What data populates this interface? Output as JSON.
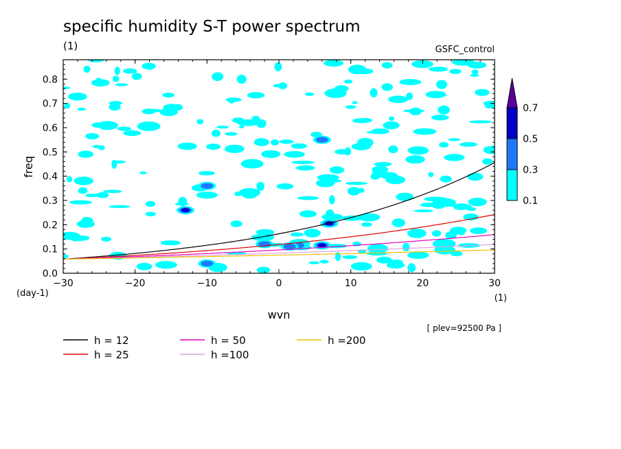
{
  "chart_data": {
    "type": "contour",
    "title": "specific humidity S-T power spectrum",
    "subtitle_left": "(1)",
    "subtitle_right": "GSFC_control",
    "xlabel": "wvn",
    "xunit": "(1)",
    "ylabel": "freq",
    "yunit": "(day-1)",
    "xlim": [
      -30,
      30
    ],
    "ylim": [
      0,
      0.88
    ],
    "x_ticks": [
      -30,
      -20,
      -10,
      0,
      10,
      20,
      30
    ],
    "x_tick_labels": [
      "−30",
      "−20",
      "−10",
      "0",
      "10",
      "20",
      "30"
    ],
    "y_ticks": [
      0,
      0.1,
      0.2,
      0.3,
      0.4,
      0.5,
      0.6,
      0.7,
      0.8
    ],
    "y_tick_labels": [
      "0.0",
      "0.1",
      "0.2",
      "0.3",
      "0.4",
      "0.5",
      "0.6",
      "0.7",
      "0.8"
    ],
    "annotation": "[ plev=92500 Pa ]",
    "colorbar": {
      "levels": [
        0.1,
        0.3,
        0.5,
        0.7
      ],
      "labels": [
        "0.1",
        "0.3",
        "0.5",
        "0.7"
      ],
      "colors": [
        "#00ffff",
        "#1e78ff",
        "#0000c8",
        "#5a00a0"
      ]
    },
    "dispersion_curves": [
      {
        "name": "h = 12",
        "h": 12,
        "color": "#000000"
      },
      {
        "name": "h = 25",
        "h": 25,
        "color": "#e00000"
      },
      {
        "name": "h = 50",
        "h": 50,
        "color": "#e000c0"
      },
      {
        "name": "h =100",
        "h": 100,
        "color": "#e0a0e0"
      },
      {
        "name": "h =200",
        "h": 200,
        "color": "#f0c000"
      }
    ],
    "contour_blobs": [
      {
        "x": -13,
        "y": 0.26,
        "level": 0.5
      },
      {
        "x": 6,
        "y": 0.55,
        "level": 0.3
      },
      {
        "x": 7,
        "y": 0.205,
        "level": 0.5
      },
      {
        "x": 6,
        "y": 0.115,
        "level": 0.5
      },
      {
        "x": 2.7,
        "y": 0.115,
        "level": 0.3
      },
      {
        "x": 1.5,
        "y": 0.11,
        "level": 0.3
      },
      {
        "x": -10,
        "y": 0.36,
        "level": 0.3
      },
      {
        "x": -10,
        "y": 0.04,
        "level": 0.3
      },
      {
        "x": -2,
        "y": 0.12,
        "level": 0.3
      }
    ]
  }
}
